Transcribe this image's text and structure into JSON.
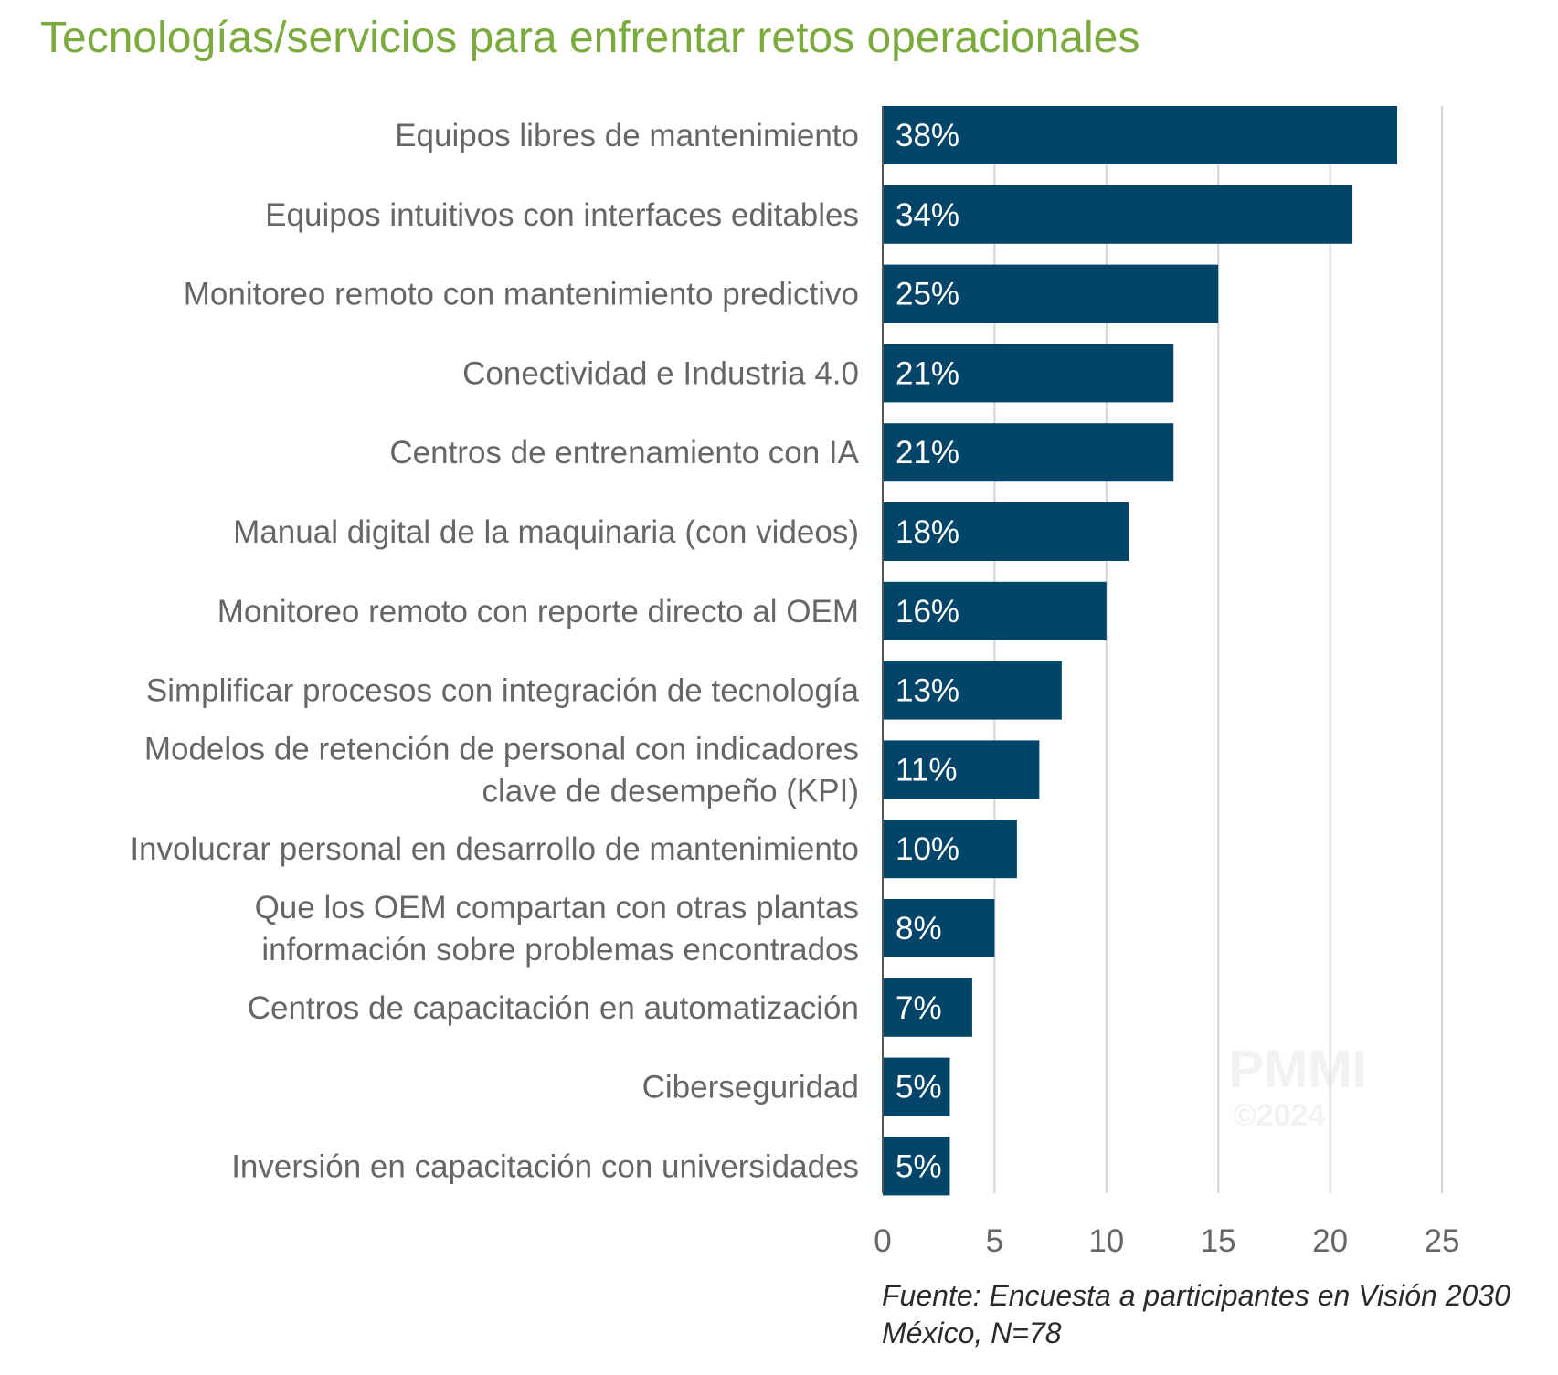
{
  "title": "Tecnologías/servicios para enfrentar retos operacionales",
  "source": "Fuente: Encuesta a participantes en Visión 2030 México, N=78",
  "watermark": {
    "brand": "PMMI",
    "year": "©2024"
  },
  "colors": {
    "bar": "#034569",
    "title": "#7aab3c",
    "grid": "#d4d4d4",
    "label": "#666666",
    "axis": "#555555"
  },
  "chart_data": {
    "type": "bar",
    "orientation": "horizontal",
    "title": "Tecnologías/servicios para enfrentar retos operacionales",
    "xlabel": "",
    "ylabel": "",
    "xlim": [
      0,
      25
    ],
    "xticks": [
      "0",
      "5",
      "10",
      "15",
      "20",
      "25"
    ],
    "grid": true,
    "categories": [
      [
        "Equipos libres de mantenimiento"
      ],
      [
        "Equipos intuitivos con interfaces editables"
      ],
      [
        "Monitoreo remoto con mantenimiento predictivo"
      ],
      [
        "Conectividad e Industria 4.0"
      ],
      [
        "Centros de entrenamiento con IA"
      ],
      [
        "Manual digital de la maquinaria (con videos)"
      ],
      [
        "Monitoreo remoto con reporte directo al OEM"
      ],
      [
        "Simplificar procesos con integración de tecnología"
      ],
      [
        "Modelos de retención de personal con indicadores",
        "clave de desempeño (KPI)"
      ],
      [
        "Involucrar personal en desarrollo de mantenimiento"
      ],
      [
        "Que los OEM compartan con otras plantas",
        "información sobre problemas encontrados"
      ],
      [
        "Centros de capacitación en automatización"
      ],
      [
        "Ciberseguridad"
      ],
      [
        "Inversión en capacitación con universidades"
      ]
    ],
    "values": [
      23,
      21,
      15,
      13,
      13,
      11,
      10,
      8,
      7,
      6,
      5,
      4,
      3,
      3
    ],
    "data_labels": [
      "38%",
      "34%",
      "25%",
      "21%",
      "21%",
      "18%",
      "16%",
      "13%",
      "11%",
      "10%",
      "8%",
      "7%",
      "5%",
      "5%"
    ]
  }
}
